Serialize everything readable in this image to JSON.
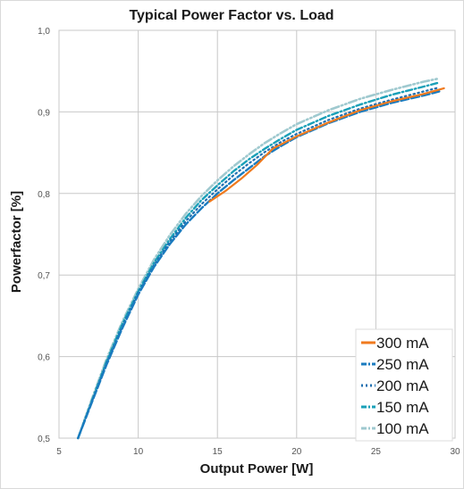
{
  "chart_data": {
    "type": "line",
    "title": "Typical Power Factor vs. Load",
    "xlabel": "Output Power [W]",
    "ylabel": "Powerfactor [%]",
    "xlim": [
      5,
      30
    ],
    "ylim": [
      0.5,
      1.0
    ],
    "x_ticks": [
      "5",
      "10",
      "15",
      "20",
      "25",
      "30"
    ],
    "y_ticks": [
      "0,5",
      "0,6",
      "0,7",
      "0,8",
      "0,9",
      "1,0"
    ],
    "grid": true,
    "legend_position": "bottom-right",
    "series": [
      {
        "name": "300 mA",
        "color": "#f07a1e",
        "style": "solid",
        "x": [
          14.5,
          15.5,
          16.5,
          17.5,
          18.5,
          20,
          22,
          24,
          26,
          28,
          29.3
        ],
        "y": [
          0.79,
          0.803,
          0.818,
          0.835,
          0.855,
          0.87,
          0.887,
          0.902,
          0.913,
          0.922,
          0.929
        ]
      },
      {
        "name": "250 mA",
        "color": "#1a7bbf",
        "style": "longdash",
        "x": [
          6.2,
          7,
          8,
          9,
          10,
          11,
          12,
          13,
          14,
          15,
          16,
          17,
          18,
          19,
          20,
          22,
          24,
          26,
          28,
          29
        ],
        "y": [
          0.5,
          0.54,
          0.59,
          0.635,
          0.676,
          0.71,
          0.738,
          0.762,
          0.782,
          0.8,
          0.816,
          0.831,
          0.846,
          0.858,
          0.869,
          0.886,
          0.9,
          0.911,
          0.92,
          0.925
        ]
      },
      {
        "name": "200 mA",
        "color": "#1f6fb0",
        "style": "dotted",
        "x": [
          6.2,
          7,
          8,
          9,
          10,
          11,
          12,
          13,
          14,
          15,
          16,
          17,
          18,
          19,
          20,
          22,
          24,
          26,
          28,
          29
        ],
        "y": [
          0.5,
          0.541,
          0.592,
          0.637,
          0.678,
          0.712,
          0.741,
          0.766,
          0.787,
          0.805,
          0.822,
          0.837,
          0.851,
          0.863,
          0.873,
          0.89,
          0.904,
          0.915,
          0.925,
          0.93
        ]
      },
      {
        "name": "150 mA",
        "color": "#1aa0b8",
        "style": "dashdot",
        "x": [
          6.2,
          7,
          8,
          9,
          10,
          11,
          12,
          13,
          14,
          15,
          16,
          17,
          18,
          19,
          20,
          22,
          24,
          26,
          28,
          29
        ],
        "y": [
          0.5,
          0.542,
          0.594,
          0.64,
          0.68,
          0.715,
          0.744,
          0.77,
          0.792,
          0.81,
          0.827,
          0.842,
          0.855,
          0.867,
          0.878,
          0.895,
          0.909,
          0.921,
          0.931,
          0.936
        ]
      },
      {
        "name": "100 mA",
        "color": "#9fc9cf",
        "style": "dashdotdot",
        "x": [
          6.2,
          7,
          8,
          9,
          10,
          11,
          12,
          13,
          14,
          15,
          16,
          17,
          18,
          19,
          20,
          22,
          24,
          26,
          28,
          29
        ],
        "y": [
          0.5,
          0.544,
          0.597,
          0.643,
          0.683,
          0.719,
          0.749,
          0.775,
          0.797,
          0.816,
          0.833,
          0.848,
          0.862,
          0.874,
          0.885,
          0.902,
          0.916,
          0.927,
          0.937,
          0.941
        ]
      }
    ]
  }
}
